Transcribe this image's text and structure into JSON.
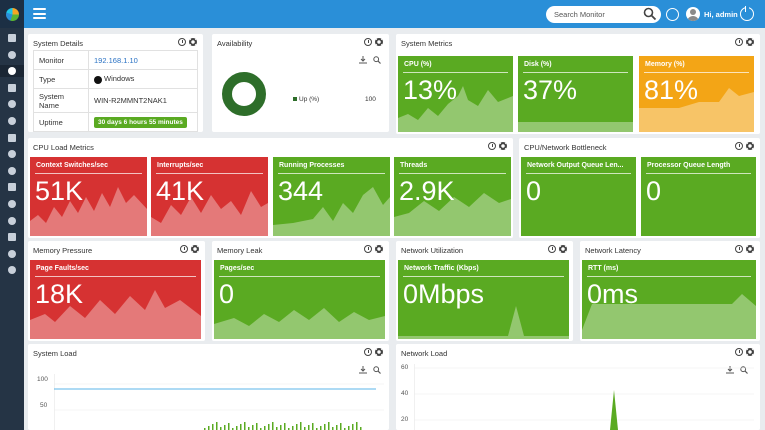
{
  "topbar": {
    "search_placeholder": "Search Monitor",
    "user_greeting": "Hi, admin"
  },
  "colors": {
    "topbar": "#2a8fd8",
    "sidebar": "#253445",
    "green": "#5aaa22",
    "red": "#d63232",
    "orange": "#f3a516"
  },
  "sidebar": {
    "items": [
      "home-icon",
      "search-icon",
      "gauge-icon",
      "sitemap-icon",
      "monitor-icon",
      "megaphone-icon",
      "cubes-icon",
      "bell-icon",
      "plug-icon",
      "book-icon",
      "bolt-icon",
      "calendar-icon",
      "report-icon",
      "flag-icon",
      "gear-icon"
    ]
  },
  "system_details": {
    "title": "System Details",
    "rows": [
      {
        "key": "Monitor",
        "value": "192.168.1.10"
      },
      {
        "key": "Type",
        "value": "Windows"
      },
      {
        "key": "System Name",
        "value": "WIN-R2MMNT2NAK1"
      },
      {
        "key": "Uptime",
        "value": "30 days 6 hours 55 minutes"
      }
    ]
  },
  "availability": {
    "title": "Availability",
    "legend": "Up (%)",
    "value": "100",
    "up_fraction": 1.0
  },
  "system_metrics": {
    "title": "System Metrics",
    "tiles": [
      {
        "label": "CPU (%)",
        "value": "13%"
      },
      {
        "label": "Disk (%)",
        "value": "37%"
      },
      {
        "label": "Memory (%)",
        "value": "81%"
      }
    ]
  },
  "cpu_load": {
    "title": "CPU Load Metrics",
    "tiles": [
      {
        "label": "Context Switches/sec",
        "value": "51K"
      },
      {
        "label": "Interrupts/sec",
        "value": "41K"
      },
      {
        "label": "Running Processes",
        "value": "344"
      },
      {
        "label": "Threads",
        "value": "2.9K"
      }
    ]
  },
  "cpu_net": {
    "title": "CPU/Network Bottleneck",
    "tiles": [
      {
        "label": "Network Output Queue Len...",
        "value": "0"
      },
      {
        "label": "Processor Queue Length",
        "value": "0"
      }
    ]
  },
  "memory_pressure": {
    "title": "Memory Pressure",
    "tile": {
      "label": "Page Faults/sec",
      "value": "18K"
    }
  },
  "memory_leak": {
    "title": "Memory Leak",
    "tile": {
      "label": "Pages/sec",
      "value": "0"
    }
  },
  "network_util": {
    "title": "Network Utilization",
    "tile": {
      "label": "Network Traffic (Kbps)",
      "value": "0Mbps"
    }
  },
  "network_latency": {
    "title": "Network Latency",
    "tile": {
      "label": "RTT (ms)",
      "value": "0ms"
    }
  },
  "system_load": {
    "title": "System Load",
    "yticks": [
      "100",
      "50"
    ]
  },
  "network_load": {
    "title": "Network Load",
    "yticks": [
      "60",
      "40",
      "20"
    ]
  }
}
